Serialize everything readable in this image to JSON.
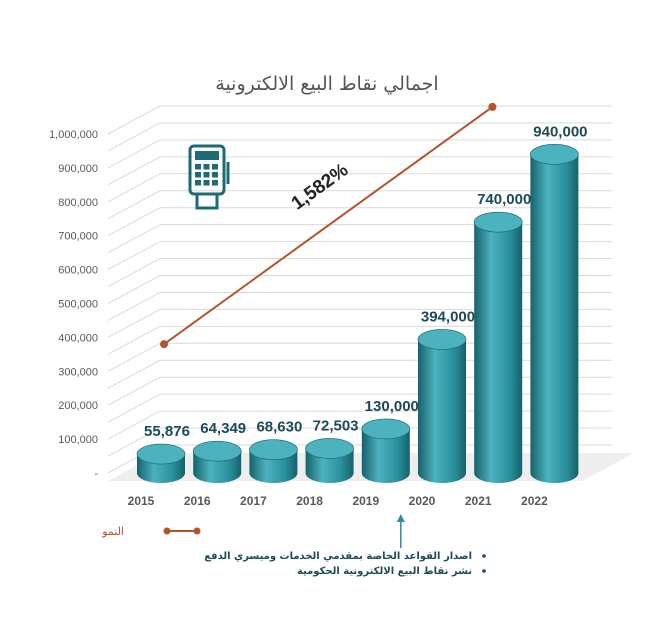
{
  "chart_data": {
    "type": "bar",
    "title": "اجمالي نقاط البيع الالكترونية",
    "categories": [
      "2015",
      "2016",
      "2017",
      "2018",
      "2019",
      "2020",
      "2021",
      "2022"
    ],
    "series": [
      {
        "name": "",
        "values": [
          55876,
          64349,
          68630,
          72503,
          130000,
          394000,
          740000,
          940000
        ]
      }
    ],
    "data_labels": [
      "55,876",
      "64,349",
      "68,630",
      "72,503",
      "130,000",
      "394,000",
      "740,000",
      "940,000"
    ],
    "ytick_labels": [
      "-",
      "100,000",
      "200,000",
      "300,000",
      "400,000",
      "500,000",
      "600,000",
      "700,000",
      "800,000",
      "900,000",
      "1,000,000"
    ],
    "ylim": [
      0,
      1000000
    ],
    "grid": true,
    "bar_style": "3d-cylinder",
    "growth_line": {
      "name": "النمو",
      "label": "1,582%",
      "from_category": "2015",
      "to_category": "2022",
      "start_value": 380000,
      "end_value": 1080000
    },
    "notes": [
      "اصدار القواعد الخاصة بمقدمي الخدمات وميسري الدفع",
      "نشر نقاط البيع الالكترونية الحكومية"
    ],
    "note_marker_category": "2019",
    "colors": {
      "bar": "#2a8f9c",
      "bar_light": "#4cb2bd",
      "bar_dark": "#16616b",
      "line": "#b5532a",
      "label": "#1d4a57",
      "grid": "#d9d9d9",
      "icon": "#1d6b73"
    },
    "icon": "pos-terminal-icon"
  }
}
